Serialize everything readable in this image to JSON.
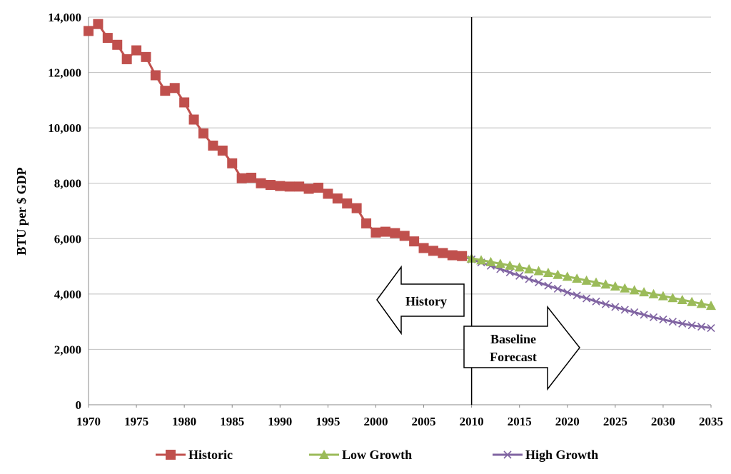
{
  "chart_data": {
    "type": "line",
    "title": "",
    "xlabel": "",
    "ylabel": "BTU per $ GDP",
    "xlim": [
      1970,
      2035
    ],
    "ylim": [
      0,
      14000
    ],
    "y_ticks": [
      0,
      2000,
      4000,
      6000,
      8000,
      10000,
      12000,
      14000
    ],
    "y_tick_labels": [
      "0",
      "2,000",
      "4,000",
      "6,000",
      "8,000",
      "10,000",
      "12,000",
      "14,000"
    ],
    "x_ticks": [
      1970,
      1975,
      1980,
      1985,
      1990,
      1995,
      2000,
      2005,
      2010,
      2015,
      2020,
      2025,
      2030,
      2035
    ],
    "x_tick_labels": [
      "1970",
      "1975",
      "1980",
      "1985",
      "1990",
      "1995",
      "2000",
      "2005",
      "2010",
      "2015",
      "2020",
      "2025",
      "2030",
      "2035"
    ],
    "grid": "horizontal",
    "legend_position": "bottom",
    "divider_year": 2010,
    "colors": {
      "historic": "#C0504D",
      "low": "#9BBB59",
      "high": "#8064A2",
      "grid": "#BFBFBF"
    },
    "series": [
      {
        "name": "Historic",
        "key": "historic",
        "marker": "square",
        "x": [
          1970,
          1971,
          1972,
          1973,
          1974,
          1975,
          1976,
          1977,
          1978,
          1979,
          1980,
          1981,
          1982,
          1983,
          1984,
          1985,
          1986,
          1987,
          1988,
          1989,
          1990,
          1991,
          1992,
          1993,
          1994,
          1995,
          1996,
          1997,
          1998,
          1999,
          2000,
          2001,
          2002,
          2003,
          2004,
          2005,
          2006,
          2007,
          2008,
          2009
        ],
        "values": [
          13500,
          13750,
          13250,
          13000,
          12480,
          12800,
          12560,
          11900,
          11340,
          11440,
          10920,
          10300,
          9800,
          9360,
          9180,
          8720,
          8180,
          8200,
          8000,
          7940,
          7900,
          7880,
          7880,
          7800,
          7840,
          7620,
          7450,
          7270,
          7100,
          6550,
          6220,
          6250,
          6200,
          6100,
          5900,
          5660,
          5560,
          5480,
          5400,
          5370
        ]
      },
      {
        "name": "Low Growth",
        "key": "low",
        "marker": "triangle",
        "x": [
          2009,
          2010,
          2011,
          2012,
          2013,
          2014,
          2015,
          2016,
          2017,
          2018,
          2019,
          2020,
          2021,
          2022,
          2023,
          2024,
          2025,
          2026,
          2027,
          2028,
          2029,
          2030,
          2031,
          2032,
          2033,
          2034,
          2035
        ],
        "values": [
          5370,
          5290,
          5225,
          5160,
          5095,
          5030,
          4965,
          4900,
          4835,
          4770,
          4700,
          4630,
          4560,
          4490,
          4420,
          4350,
          4280,
          4210,
          4140,
          4070,
          4000,
          3930,
          3860,
          3790,
          3720,
          3650,
          3580
        ]
      },
      {
        "name": "High Growth",
        "key": "high",
        "marker": "x",
        "x": [
          2009,
          2010,
          2011,
          2012,
          2013,
          2014,
          2015,
          2016,
          2017,
          2018,
          2019,
          2020,
          2021,
          2022,
          2023,
          2024,
          2025,
          2026,
          2027,
          2028,
          2029,
          2030,
          2031,
          2032,
          2033,
          2034,
          2035
        ],
        "values": [
          5370,
          5250,
          5140,
          5020,
          4900,
          4780,
          4660,
          4540,
          4420,
          4300,
          4190,
          4060,
          3950,
          3840,
          3730,
          3630,
          3530,
          3430,
          3340,
          3250,
          3160,
          3080,
          3000,
          2930,
          2870,
          2820,
          2770
        ]
      }
    ],
    "annotations": [
      {
        "text": "History",
        "direction": "left"
      },
      {
        "lines": [
          "Baseline",
          "Forecast"
        ],
        "direction": "right"
      }
    ]
  }
}
